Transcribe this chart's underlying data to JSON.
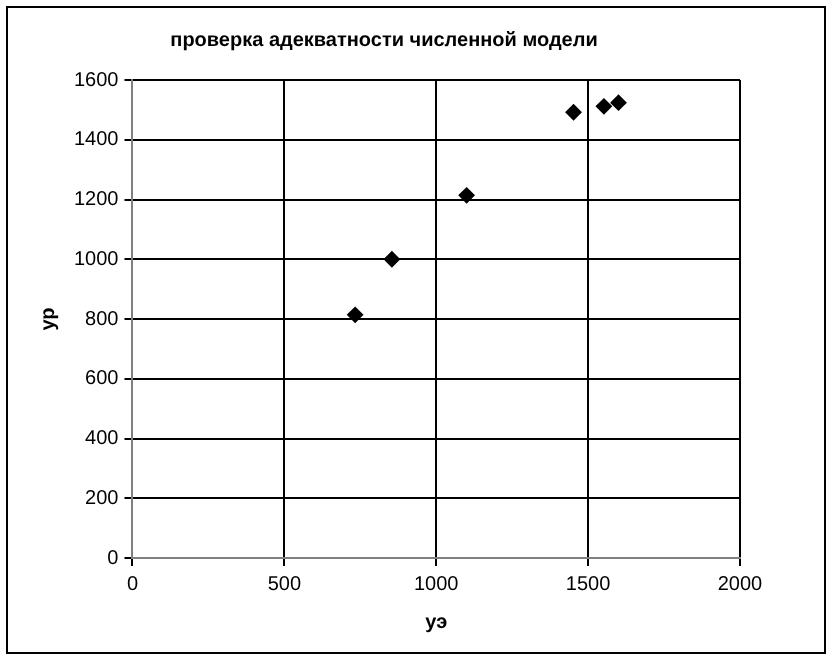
{
  "chart_data": {
    "type": "scatter",
    "title": "проверка адекватности численной модели",
    "xlabel": "уэ",
    "ylabel": "ур",
    "x": [
      733,
      854,
      1100,
      1452,
      1552,
      1600
    ],
    "series": [
      {
        "color": "#000000",
        "values": [
          814,
          1000,
          1214,
          1492,
          1512,
          1524
        ]
      }
    ],
    "xlim": [
      0,
      2000
    ],
    "xticks": [
      0,
      500,
      1000,
      1500,
      2000
    ],
    "ylim": [
      0,
      1600
    ],
    "yticks": [
      0,
      200,
      400,
      600,
      800,
      1000,
      1200,
      1400,
      1600
    ],
    "grid": true,
    "legend": false,
    "marker": "diamond"
  }
}
